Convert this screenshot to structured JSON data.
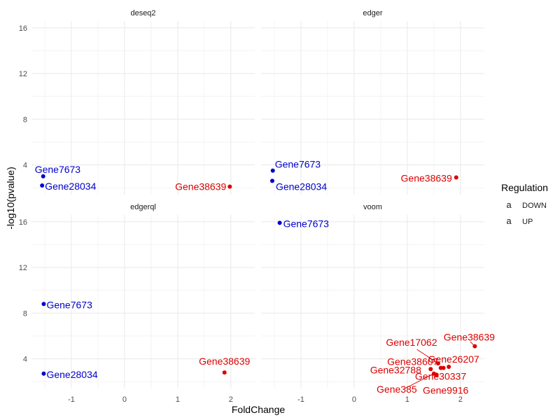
{
  "chart_data": {
    "type": "scatter",
    "xlabel": "FoldChange",
    "ylabel": "-log10(pvalue)",
    "xlim": [
      -1.75,
      2.45
    ],
    "ylim": [
      1.4,
      16.6
    ],
    "x_ticks": [
      -1,
      0,
      1,
      2
    ],
    "y_ticks": [
      4,
      8,
      12,
      16
    ],
    "x_tick_labels": [
      "-1",
      "0",
      "1",
      "2"
    ],
    "y_tick_labels": [
      "4",
      "8",
      "12",
      "16"
    ],
    "grid": true,
    "colors": {
      "DOWN": "#0000CC",
      "UP": "#DD0000"
    },
    "legend": {
      "title": "Regulation",
      "position": "right",
      "entries": [
        {
          "key": "DOWN",
          "label": "DOWN",
          "glyph": "a"
        },
        {
          "key": "UP",
          "label": "UP",
          "glyph": "a"
        }
      ]
    },
    "panels": [
      {
        "name": "deseq2",
        "points": [
          {
            "gene": "Gene7673",
            "x": -1.53,
            "y": 3.0,
            "regulation": "DOWN"
          },
          {
            "gene": "Gene28034",
            "x": -1.55,
            "y": 2.2,
            "regulation": "DOWN"
          },
          {
            "gene": "Gene38639",
            "x": 1.98,
            "y": 2.1,
            "regulation": "UP"
          }
        ]
      },
      {
        "name": "edger",
        "points": [
          {
            "gene": "Gene7673",
            "x": -1.53,
            "y": 3.5,
            "regulation": "DOWN"
          },
          {
            "gene": "Gene28034",
            "x": -1.54,
            "y": 2.6,
            "regulation": "DOWN"
          },
          {
            "gene": "Gene38639",
            "x": 1.92,
            "y": 2.9,
            "regulation": "UP"
          }
        ]
      },
      {
        "name": "edgerql",
        "points": [
          {
            "gene": "Gene7673",
            "x": -1.52,
            "y": 8.8,
            "regulation": "DOWN"
          },
          {
            "gene": "Gene28034",
            "x": -1.52,
            "y": 2.7,
            "regulation": "DOWN"
          },
          {
            "gene": "Gene38639",
            "x": 1.88,
            "y": 2.8,
            "regulation": "UP"
          }
        ]
      },
      {
        "name": "voom",
        "points": [
          {
            "gene": "Gene7673",
            "x": -1.4,
            "y": 15.9,
            "regulation": "DOWN"
          },
          {
            "gene": "Gene38639",
            "x": 2.27,
            "y": 5.1,
            "regulation": "UP"
          },
          {
            "gene": "Gene17062",
            "x": 1.58,
            "y": 3.6,
            "regulation": "UP"
          },
          {
            "gene": "Gene38607",
            "x": 1.63,
            "y": 3.2,
            "regulation": "UP"
          },
          {
            "gene": "Gene26207",
            "x": 1.78,
            "y": 3.3,
            "regulation": "UP"
          },
          {
            "gene": "Gene32788",
            "x": 1.44,
            "y": 3.1,
            "regulation": "UP"
          },
          {
            "gene": "Gene30337",
            "x": 1.68,
            "y": 3.2,
            "regulation": "UP"
          },
          {
            "gene": "Gene385",
            "x": 1.5,
            "y": 2.7,
            "regulation": "UP"
          },
          {
            "gene": "Gene9916",
            "x": 1.55,
            "y": 2.6,
            "regulation": "UP"
          }
        ]
      }
    ]
  }
}
